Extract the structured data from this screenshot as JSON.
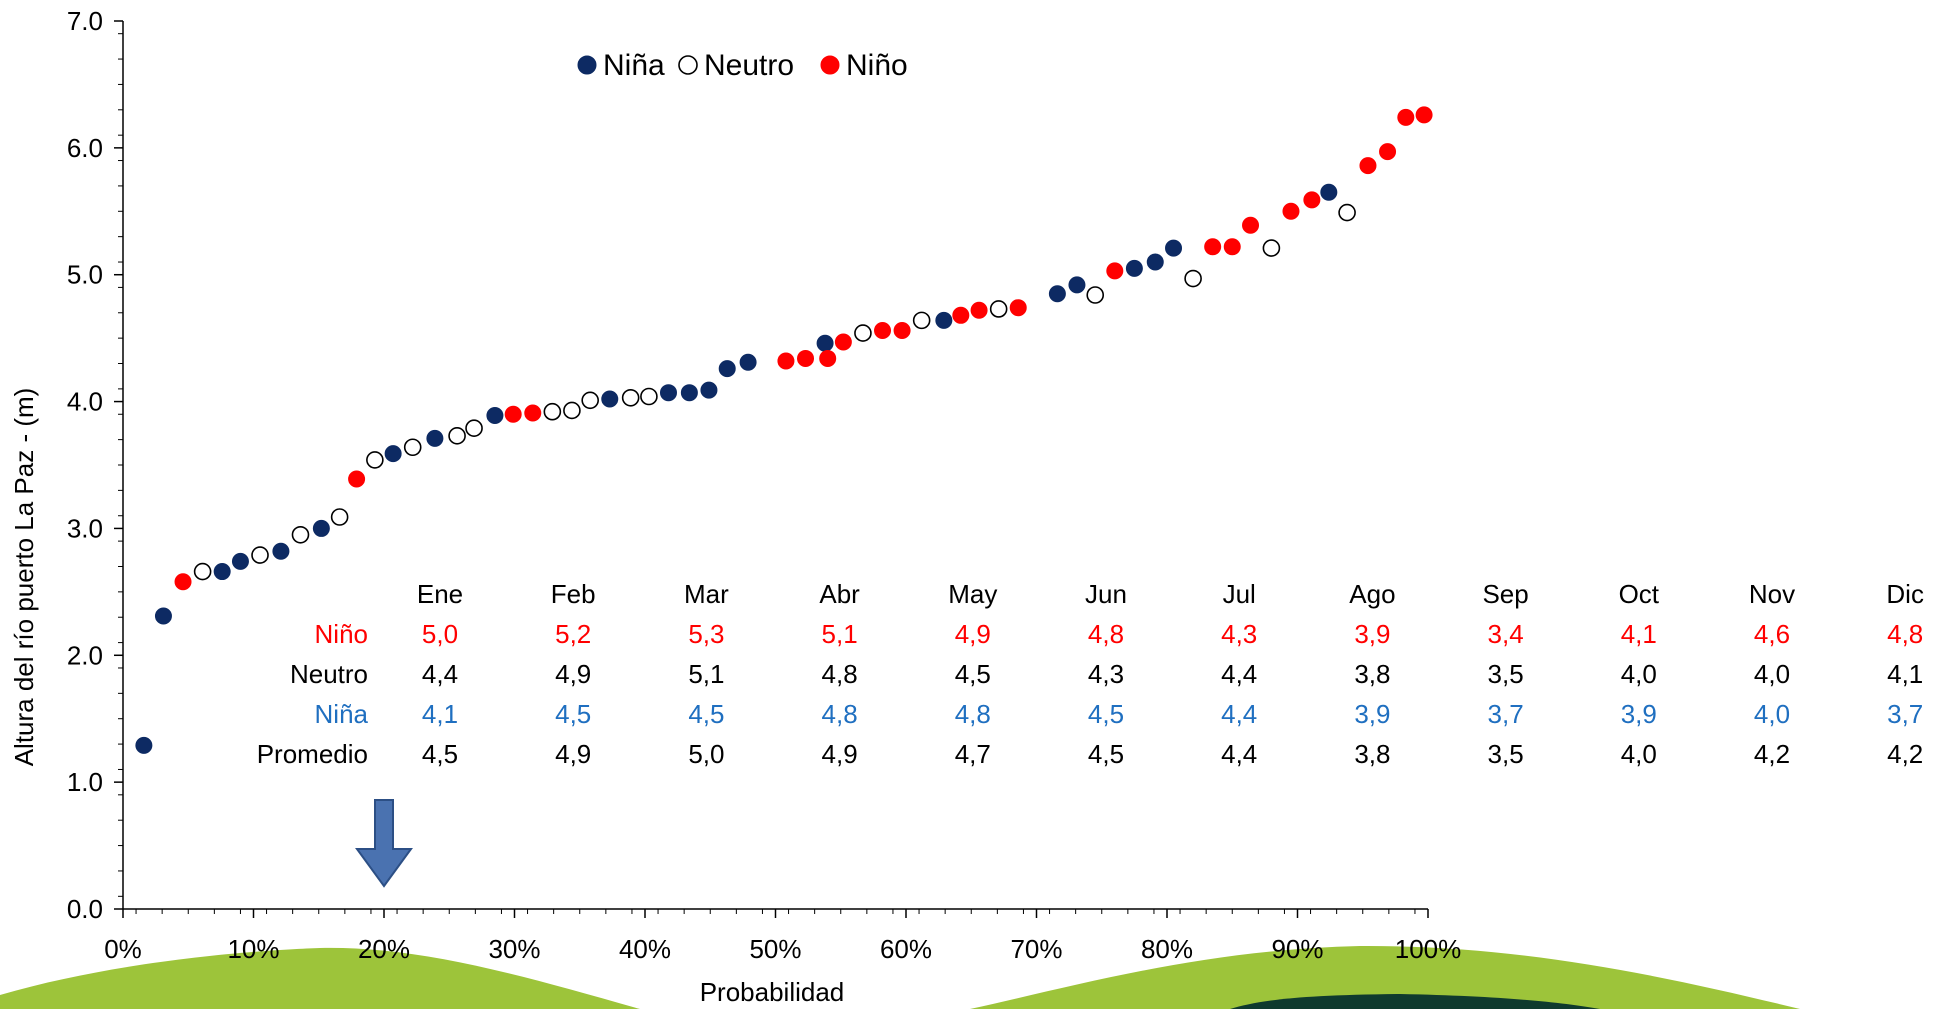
{
  "chart_data": {
    "type": "scatter",
    "xlabel": "Probabilidad",
    "ylabel": "Altura del río puerto La Paz - (m)",
    "xlim": [
      0,
      100
    ],
    "ylim": [
      0,
      7
    ],
    "x_ticks": [
      "0%",
      "10%",
      "20%",
      "30%",
      "40%",
      "50%",
      "60%",
      "70%",
      "80%",
      "90%",
      "100%"
    ],
    "y_ticks": [
      "0.0",
      "1.0",
      "2.0",
      "3.0",
      "4.0",
      "5.0",
      "6.0",
      "7.0"
    ],
    "legend": {
      "position": "top-center",
      "entries": [
        {
          "name": "Niña",
          "style": "filled",
          "color": "#0d2a63"
        },
        {
          "name": "Neutro",
          "style": "hollow",
          "color": "#000000"
        },
        {
          "name": "Niño",
          "style": "filled",
          "color": "#ff0000"
        }
      ]
    },
    "series": [
      {
        "name": "Niña",
        "color": "#0d2a63",
        "points": [
          [
            1.6,
            1.29
          ],
          [
            3.1,
            2.31
          ],
          [
            7.6,
            2.66
          ],
          [
            9.0,
            2.74
          ],
          [
            12.1,
            2.82
          ],
          [
            15.2,
            3.0
          ],
          [
            20.7,
            3.59
          ],
          [
            23.9,
            3.71
          ],
          [
            28.5,
            3.89
          ],
          [
            37.3,
            4.02
          ],
          [
            41.8,
            4.07
          ],
          [
            43.4,
            4.07
          ],
          [
            44.9,
            4.09
          ],
          [
            46.3,
            4.26
          ],
          [
            47.9,
            4.31
          ],
          [
            53.8,
            4.46
          ],
          [
            62.9,
            4.64
          ],
          [
            71.6,
            4.85
          ],
          [
            73.1,
            4.92
          ],
          [
            77.5,
            5.05
          ],
          [
            79.1,
            5.1
          ],
          [
            80.5,
            5.21
          ],
          [
            92.4,
            5.65
          ]
        ]
      },
      {
        "name": "Neutro",
        "color": "#000000",
        "points": [
          [
            6.1,
            2.66
          ],
          [
            10.5,
            2.79
          ],
          [
            13.6,
            2.95
          ],
          [
            16.6,
            3.09
          ],
          [
            19.3,
            3.54
          ],
          [
            22.2,
            3.64
          ],
          [
            25.6,
            3.73
          ],
          [
            26.9,
            3.79
          ],
          [
            32.9,
            3.92
          ],
          [
            34.4,
            3.93
          ],
          [
            35.8,
            4.01
          ],
          [
            38.9,
            4.03
          ],
          [
            40.3,
            4.04
          ],
          [
            56.7,
            4.54
          ],
          [
            61.2,
            4.64
          ],
          [
            67.1,
            4.73
          ],
          [
            74.5,
            4.84
          ],
          [
            82.0,
            4.97
          ],
          [
            88.0,
            5.21
          ],
          [
            93.8,
            5.49
          ]
        ]
      },
      {
        "name": "Niño",
        "color": "#ff0000",
        "points": [
          [
            4.6,
            2.58
          ],
          [
            17.9,
            3.39
          ],
          [
            29.9,
            3.9
          ],
          [
            31.4,
            3.91
          ],
          [
            50.8,
            4.32
          ],
          [
            52.3,
            4.34
          ],
          [
            54.0,
            4.34
          ],
          [
            55.2,
            4.47
          ],
          [
            58.2,
            4.56
          ],
          [
            59.7,
            4.56
          ],
          [
            64.2,
            4.68
          ],
          [
            65.6,
            4.72
          ],
          [
            68.6,
            4.74
          ],
          [
            76.0,
            5.03
          ],
          [
            83.5,
            5.22
          ],
          [
            85.0,
            5.22
          ],
          [
            86.4,
            5.39
          ],
          [
            89.5,
            5.5
          ],
          [
            91.1,
            5.59
          ],
          [
            95.4,
            5.86
          ],
          [
            96.9,
            5.97
          ],
          [
            98.3,
            6.24
          ],
          [
            99.7,
            6.26
          ]
        ]
      }
    ],
    "table": {
      "months": [
        "Ene",
        "Feb",
        "Mar",
        "Abr",
        "May",
        "Jun",
        "Jul",
        "Ago",
        "Sep",
        "Oct",
        "Nov",
        "Dic"
      ],
      "rows": [
        {
          "label": "Niño",
          "color": "#ff0000",
          "values": [
            "5,0",
            "5,2",
            "5,3",
            "5,1",
            "4,9",
            "4,8",
            "4,3",
            "3,9",
            "3,4",
            "4,1",
            "4,6",
            "4,8"
          ]
        },
        {
          "label": "Neutro",
          "color": "#000000",
          "values": [
            "4,4",
            "4,9",
            "5,1",
            "4,8",
            "4,5",
            "4,3",
            "4,4",
            "3,8",
            "3,5",
            "4,0",
            "4,0",
            "4,1"
          ]
        },
        {
          "label": "Niña",
          "color": "#1f6fc0",
          "values": [
            "4,1",
            "4,5",
            "4,5",
            "4,8",
            "4,8",
            "4,5",
            "4,4",
            "3,9",
            "3,7",
            "3,9",
            "4,0",
            "3,7"
          ]
        },
        {
          "label": "Promedio",
          "color": "#000000",
          "values": [
            "4,5",
            "4,9",
            "5,0",
            "4,9",
            "4,7",
            "4,5",
            "4,4",
            "3,8",
            "3,5",
            "4,0",
            "4,2",
            "4,2"
          ]
        }
      ]
    },
    "annotations": {
      "arrow_at_x": 20,
      "arrow_color": "#4a72b0"
    }
  },
  "decoration": {
    "hill_color": "#9dc43a",
    "dark_band_color": "#0f3a2e"
  }
}
